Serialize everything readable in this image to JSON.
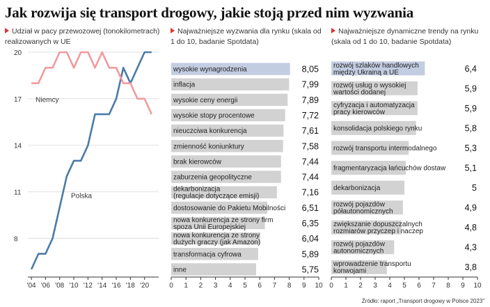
{
  "title": "Jak rozwija się transport drogowy, jakie stoją przed nim wyzwania",
  "source": "Źródło: raport „Transport drogowy w Polsce 2023”",
  "colors": {
    "accent": "#e2302f",
    "poland": "#4a7ba7",
    "germany": "#f29a9e",
    "bar": "#d2d2d2",
    "bar_highlight": "#c3cde2"
  },
  "chart_data": [
    {
      "type": "line",
      "subtitle": "Udział w pacy przewozowej (tonokilometrach) realizowanych w UE",
      "ylim": [
        5.5,
        20
      ],
      "yticks": [
        8,
        11,
        14,
        17,
        20
      ],
      "xlim": [
        2003.5,
        2022
      ],
      "xticks": [
        2004,
        2006,
        2008,
        2010,
        2012,
        2014,
        2016,
        2018,
        2020
      ],
      "xtick_labels": [
        "'04",
        "'06",
        "'08",
        "'10",
        "'12",
        "'14",
        "'16",
        "'18",
        "'20"
      ],
      "series": [
        {
          "name": "Polska",
          "x": [
            2004,
            2005,
            2006,
            2007,
            2008,
            2009,
            2010,
            2011,
            2012,
            2013,
            2014,
            2015,
            2016,
            2017,
            2018,
            2019,
            2020,
            2021
          ],
          "values": [
            6,
            7,
            7,
            8,
            10,
            12,
            13,
            13,
            14,
            16,
            16,
            16,
            17,
            19,
            18,
            19,
            20,
            20
          ]
        },
        {
          "name": "Niemcy",
          "x": [
            2004,
            2005,
            2006,
            2007,
            2008,
            2009,
            2010,
            2011,
            2012,
            2013,
            2014,
            2015,
            2016,
            2017,
            2018,
            2019,
            2020,
            2021
          ],
          "values": [
            18,
            18,
            19,
            19,
            20,
            20,
            19,
            20,
            20,
            19,
            20,
            19,
            19,
            18,
            18,
            17,
            17,
            16
          ]
        }
      ]
    },
    {
      "type": "bar",
      "subtitle": "Najważniejsze wyzwania dla rynku (skala od 1 do 10, badanie Spotdata)",
      "xlim": [
        0,
        10
      ],
      "xticks": [
        0,
        1,
        2,
        3,
        4,
        5,
        6,
        7,
        8,
        9,
        10
      ],
      "categories": [
        "wysokie wynagrodzenia",
        "inflacja",
        "wysokie ceny energii",
        "wysokie stopy procentowe",
        "nieuczciwa konkurencja",
        "zmienność koniunktury",
        "brak kierowców",
        "zaburzenia geopolityczne",
        "dekarbonizacja (regulacje dotyczące emisji)",
        "dostosowanie do Pakietu Mobilności",
        "nowa konkurencja ze strony firm spoza Unii Europejskiej",
        "nowa konkurencja ze strony dużych graczy (jak Amazon)",
        "transformacja cyfrowa",
        "inne"
      ],
      "label_lines": [
        [
          "wysokie wynagrodzenia"
        ],
        [
          "inflacja"
        ],
        [
          "wysokie ceny energii"
        ],
        [
          "wysokie stopy procentowe"
        ],
        [
          "nieuczciwa konkurencja"
        ],
        [
          "zmienność koniunktury"
        ],
        [
          "brak kierowców"
        ],
        [
          "zaburzenia geopolityczne"
        ],
        [
          "dekarbonizacja",
          "(regulacje dotyczące emisji)"
        ],
        [
          "dostosowanie do Pakietu Mobilności"
        ],
        [
          "nowa konkurencja ze strony firm",
          "spoza Unii Europejskiej"
        ],
        [
          "nowa konkurencja ze strony",
          "dużych graczy (jak Amazon)"
        ],
        [
          "transformacja cyfrowa"
        ],
        [
          "inne"
        ]
      ],
      "values": [
        8.05,
        7.99,
        7.89,
        7.72,
        7.61,
        7.58,
        7.44,
        7.44,
        7.16,
        6.51,
        6.35,
        6.04,
        5.89,
        5.75
      ],
      "value_labels": [
        "8,05",
        "7,99",
        "7,89",
        "7,72",
        "7,61",
        "7,58",
        "7,44",
        "7,44",
        "7,16",
        "6,51",
        "6,35",
        "6,04",
        "5,89",
        "5,75"
      ]
    },
    {
      "type": "bar",
      "subtitle": "Najważniejsze dynamiczne trendy na rynku (skala od 1 do 10, badanie Spotdata)",
      "xlim": [
        0,
        10
      ],
      "xticks": [
        0,
        1,
        2,
        3,
        4,
        5,
        6,
        7,
        8,
        9,
        10
      ],
      "categories": [
        "rozwój szlaków handlowych między Ukrainą a UE",
        "rozwój usług o wysokiej wartości dodanej",
        "cyfryzacja i automatyzacja pracy kierowców",
        "konsolidacja polskiego rynku",
        "rozwój transportu intermodalnego",
        "fragmentaryzacja łańcuchów dostaw",
        "dekarbonizacja",
        "rozwój pojazdów półautonomicznych",
        "zwiększanie dopuszczalnych rozmiarów przyczep i naczep",
        "rozwój pojazdów autonomicznych",
        "wprowadzenie transportu konwojami"
      ],
      "label_lines": [
        [
          "rozwój szlaków handlowych",
          "między Ukrainą a UE"
        ],
        [
          "rozwój usług o wysokiej",
          "wartości dodanej"
        ],
        [
          "cyfryzacja i automatyzacja",
          "pracy kierowców"
        ],
        [
          "konsolidacja polskiego rynku"
        ],
        [
          "rozwój transportu intermodalnego"
        ],
        [
          "fragmentaryzacja łańcuchów dostaw"
        ],
        [
          "dekarbonizacja"
        ],
        [
          "rozwój pojazdów",
          "półautonomicznych"
        ],
        [
          "zwiększanie dopuszczalnych",
          "rozmiarów przyczep i naczep"
        ],
        [
          "rozwój pojazdów",
          "autonomicznych"
        ],
        [
          "wprowadzenie transportu",
          "konwojami"
        ]
      ],
      "values": [
        6.4,
        5.9,
        5.9,
        5.8,
        5.3,
        5.1,
        5.0,
        4.9,
        4.8,
        4.3,
        3.8
      ],
      "value_labels": [
        "6,4",
        "5,9",
        "5,9",
        "5,8",
        "5,3",
        "5,1",
        "5",
        "4,9",
        "4,8",
        "4,3",
        "3,8"
      ]
    }
  ]
}
